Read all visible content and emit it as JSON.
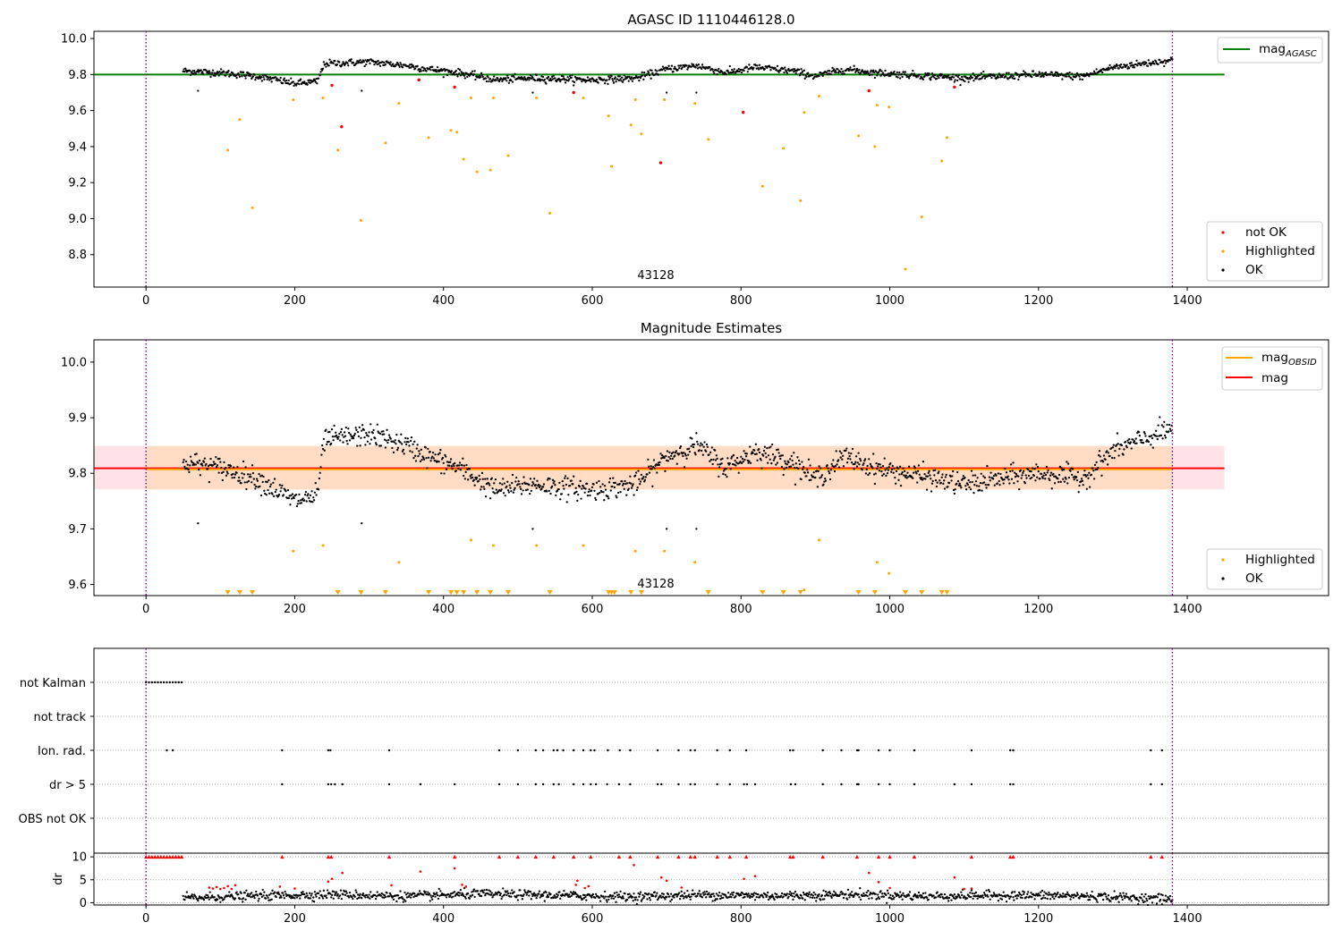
{
  "figure": {
    "title": "AGASC ID 1110446128.0",
    "colors": {
      "ok": "#000000",
      "not_ok": "#ff0000",
      "highlighted": "#ffa500",
      "mag_agasc": "#008000",
      "mag": "#ff0000",
      "mag_obsid": "#ffa500",
      "obs_boundary": "#800080",
      "band_mag": "#ffc0cb",
      "band_obsid": "#ffdab9"
    }
  },
  "chart_data": [
    {
      "type": "scatter",
      "title": "",
      "xlabel": "",
      "ylabel": "",
      "xlim": [
        -70,
        1590
      ],
      "ylim": [
        8.62,
        10.04
      ],
      "xticks": [
        0,
        200,
        400,
        600,
        800,
        1000,
        1200,
        1400
      ],
      "yticks": [
        8.8,
        9.0,
        9.2,
        9.4,
        9.6,
        9.8,
        10.0
      ],
      "ytick_labels": [
        "8.8",
        "9.0",
        "9.2",
        "9.4",
        "9.6",
        "9.8",
        "10.0"
      ],
      "grid": false,
      "obs_boundaries": [
        0,
        1380
      ],
      "obsid_label": {
        "text": "43128",
        "x": 690
      },
      "reference_lines": [
        {
          "name": "magAGASC",
          "legend_main": "mag",
          "legend_sub": "AGASC",
          "y": 9.8,
          "x_range": [
            -70,
            1450
          ]
        }
      ],
      "ok_trace": {
        "x_range": [
          50,
          1380
        ],
        "anchors": [
          [
            50,
            9.82
          ],
          [
            100,
            9.81
          ],
          [
            150,
            9.79
          ],
          [
            200,
            9.75
          ],
          [
            230,
            9.76
          ],
          [
            240,
            9.86
          ],
          [
            300,
            9.87
          ],
          [
            350,
            9.85
          ],
          [
            380,
            9.83
          ],
          [
            420,
            9.81
          ],
          [
            470,
            9.77
          ],
          [
            520,
            9.78
          ],
          [
            600,
            9.77
          ],
          [
            660,
            9.78
          ],
          [
            700,
            9.83
          ],
          [
            740,
            9.85
          ],
          [
            780,
            9.81
          ],
          [
            820,
            9.84
          ],
          [
            870,
            9.82
          ],
          [
            900,
            9.79
          ],
          [
            940,
            9.83
          ],
          [
            980,
            9.81
          ],
          [
            1020,
            9.8
          ],
          [
            1100,
            9.78
          ],
          [
            1200,
            9.8
          ],
          [
            1260,
            9.79
          ],
          [
            1300,
            9.84
          ],
          [
            1380,
            9.88
          ]
        ],
        "spread": 0.018,
        "step": 1,
        "sparse_outliers": [
          [
            70,
            9.71
          ],
          [
            290,
            9.71
          ],
          [
            520,
            9.7
          ],
          [
            700,
            9.7
          ],
          [
            740,
            9.7
          ]
        ]
      },
      "highlighted": [
        [
          110,
          9.38
        ],
        [
          126,
          9.55
        ],
        [
          143,
          9.06
        ],
        [
          198,
          9.66
        ],
        [
          238,
          9.67
        ],
        [
          258,
          9.38
        ],
        [
          289,
          8.99
        ],
        [
          322,
          9.42
        ],
        [
          340,
          9.64
        ],
        [
          380,
          9.45
        ],
        [
          410,
          9.49
        ],
        [
          418,
          9.48
        ],
        [
          427,
          9.33
        ],
        [
          437,
          9.67
        ],
        [
          445,
          9.26
        ],
        [
          463,
          9.27
        ],
        [
          467,
          9.67
        ],
        [
          487,
          9.35
        ],
        [
          525,
          9.67
        ],
        [
          543,
          9.03
        ],
        [
          588,
          9.67
        ],
        [
          622,
          9.57
        ],
        [
          626,
          9.29
        ],
        [
          652,
          9.52
        ],
        [
          658,
          9.66
        ],
        [
          666,
          9.47
        ],
        [
          697,
          9.66
        ],
        [
          738,
          9.64
        ],
        [
          756,
          9.44
        ],
        [
          829,
          9.18
        ],
        [
          857,
          9.39
        ],
        [
          880,
          9.1
        ],
        [
          885,
          9.59
        ],
        [
          905,
          9.68
        ],
        [
          958,
          9.46
        ],
        [
          980,
          9.4
        ],
        [
          983,
          9.63
        ],
        [
          999,
          9.62
        ],
        [
          1021,
          8.72
        ],
        [
          1043,
          9.01
        ],
        [
          1070,
          9.32
        ],
        [
          1077,
          9.45
        ]
      ],
      "not_ok": [
        [
          250,
          9.74
        ],
        [
          263,
          9.51
        ],
        [
          367,
          9.77
        ],
        [
          415,
          9.73
        ],
        [
          575,
          9.7
        ],
        [
          692,
          9.31
        ],
        [
          803,
          9.59
        ],
        [
          972,
          9.71
        ],
        [
          1087,
          9.73
        ]
      ],
      "legend": [
        {
          "label": "not OK",
          "color": "#ff0000"
        },
        {
          "label": "Highlighted",
          "color": "#ffa500"
        },
        {
          "label": "OK",
          "color": "#000000"
        }
      ]
    },
    {
      "type": "scatter",
      "title": "Magnitude Estimates",
      "xlabel": "",
      "ylabel": "",
      "xlim": [
        -70,
        1590
      ],
      "ylim": [
        9.58,
        10.04
      ],
      "xticks": [
        0,
        200,
        400,
        600,
        800,
        1000,
        1200,
        1400
      ],
      "yticks": [
        9.6,
        9.7,
        9.8,
        9.9,
        10.0
      ],
      "ytick_labels": [
        "9.6",
        "9.7",
        "9.8",
        "9.9",
        "10.0"
      ],
      "grid": false,
      "obs_boundaries": [
        0,
        1380
      ],
      "obsid_label": {
        "text": "43128",
        "x": 690
      },
      "bands": [
        {
          "name": "mag",
          "y_range": [
            9.771,
            9.849
          ],
          "x_range": [
            -70,
            1450
          ],
          "color": "#ffc0cb"
        },
        {
          "name": "magOBSID",
          "y_range": [
            9.771,
            9.849
          ],
          "x_range": [
            0,
            1380
          ],
          "color": "#ffdab9"
        }
      ],
      "reference_lines": [
        {
          "name": "mag",
          "legend_main": "mag",
          "legend_sub": "",
          "y": 9.809,
          "x_range": [
            -70,
            1450
          ],
          "color": "#ff0000"
        },
        {
          "name": "magOBSID",
          "legend_main": "mag",
          "legend_sub": "OBSID",
          "y": 9.807,
          "x_range": [
            0,
            1380
          ],
          "color": "#ffa500"
        }
      ],
      "ok_trace": {
        "x_range": [
          50,
          1380
        ],
        "anchors": [
          [
            50,
            9.82
          ],
          [
            100,
            9.81
          ],
          [
            150,
            9.79
          ],
          [
            200,
            9.75
          ],
          [
            230,
            9.76
          ],
          [
            240,
            9.86
          ],
          [
            300,
            9.87
          ],
          [
            350,
            9.85
          ],
          [
            380,
            9.83
          ],
          [
            420,
            9.81
          ],
          [
            470,
            9.77
          ],
          [
            520,
            9.78
          ],
          [
            600,
            9.77
          ],
          [
            660,
            9.78
          ],
          [
            700,
            9.83
          ],
          [
            740,
            9.85
          ],
          [
            780,
            9.81
          ],
          [
            820,
            9.84
          ],
          [
            870,
            9.82
          ],
          [
            900,
            9.79
          ],
          [
            940,
            9.83
          ],
          [
            980,
            9.81
          ],
          [
            1020,
            9.8
          ],
          [
            1100,
            9.78
          ],
          [
            1200,
            9.8
          ],
          [
            1260,
            9.79
          ],
          [
            1300,
            9.84
          ],
          [
            1380,
            9.88
          ]
        ],
        "spread": 0.018,
        "step": 1,
        "sparse_outliers": [
          [
            70,
            9.71
          ],
          [
            290,
            9.71
          ],
          [
            520,
            9.7
          ],
          [
            700,
            9.7
          ],
          [
            740,
            9.7
          ]
        ]
      },
      "highlighted": [
        [
          198,
          9.66
        ],
        [
          238,
          9.67
        ],
        [
          340,
          9.64
        ],
        [
          437,
          9.68
        ],
        [
          467,
          9.67
        ],
        [
          525,
          9.67
        ],
        [
          588,
          9.67
        ],
        [
          658,
          9.66
        ],
        [
          697,
          9.66
        ],
        [
          738,
          9.64
        ],
        [
          905,
          9.68
        ],
        [
          983,
          9.64
        ],
        [
          999,
          9.62
        ],
        [
          885,
          9.59
        ]
      ],
      "highlighted_below_range": [
        110,
        126,
        143,
        258,
        289,
        322,
        380,
        410,
        418,
        427,
        445,
        463,
        487,
        543,
        622,
        626,
        630,
        652,
        666,
        756,
        829,
        857,
        880,
        958,
        980,
        1021,
        1043,
        1070,
        1077
      ],
      "legend": [
        {
          "label": "Highlighted",
          "color": "#ffa500"
        },
        {
          "label": "OK",
          "color": "#000000"
        }
      ]
    },
    {
      "type": "scatter",
      "title": "",
      "xlabel": "",
      "ylabel": "",
      "xlim": [
        -70,
        1590
      ],
      "xticks": [
        0,
        200,
        400,
        600,
        800,
        1000,
        1200,
        1400
      ],
      "grid": true,
      "obs_boundaries": [
        0,
        1380
      ],
      "flag_rows": [
        {
          "label": "not Kalman",
          "x": [
            0,
            4,
            8,
            12,
            16,
            20,
            24,
            28,
            32,
            36,
            40,
            44,
            48
          ]
        },
        {
          "label": "not track",
          "x": []
        },
        {
          "label": "Ion. rad.",
          "x": [
            28,
            36,
            183,
            245,
            248,
            327,
            475,
            500,
            524,
            534,
            548,
            553,
            561,
            575,
            588,
            598,
            603,
            621,
            637,
            651,
            688,
            716,
            732,
            738,
            768,
            785,
            807,
            866,
            870,
            910,
            935,
            956,
            958,
            985,
            1000,
            1033,
            1110,
            1162,
            1166,
            1351,
            1366
          ]
        },
        {
          "label": "dr > 5",
          "x": [
            183,
            245,
            249,
            254,
            264,
            327,
            369,
            415,
            475,
            500,
            524,
            534,
            548,
            555,
            575,
            588,
            598,
            605,
            620,
            636,
            651,
            688,
            693,
            716,
            732,
            738,
            768,
            785,
            804,
            808,
            819,
            867,
            873,
            910,
            935,
            956,
            958,
            985,
            1000,
            1033,
            1087,
            1110,
            1162,
            1166,
            1351,
            1366
          ]
        },
        {
          "label": "OBS not OK",
          "x": []
        }
      ]
    },
    {
      "type": "scatter",
      "title": "",
      "xlabel": "",
      "ylabel": "dr",
      "xlim": [
        -70,
        1590
      ],
      "ylim": [
        -0.5,
        10.8
      ],
      "xticks": [
        0,
        200,
        400,
        600,
        800,
        1000,
        1200,
        1400
      ],
      "xtick_labels": [
        "0",
        "200",
        "400",
        "600",
        "800",
        "1000",
        "1200",
        "1400"
      ],
      "yticks": [
        0,
        5,
        10
      ],
      "ytick_labels": [
        "0",
        "5",
        "10"
      ],
      "grid": true,
      "obs_boundaries": [
        0,
        1380
      ],
      "capped_markers_at_10": [
        0,
        4,
        8,
        12,
        16,
        20,
        24,
        28,
        32,
        36,
        40,
        44,
        48,
        183,
        245,
        249,
        327,
        415,
        475,
        500,
        524,
        548,
        575,
        598,
        636,
        651,
        688,
        716,
        732,
        738,
        768,
        785,
        807,
        866,
        870,
        910,
        956,
        985,
        1000,
        1033,
        1110,
        1162,
        1166,
        1351,
        1366
      ],
      "red_points": [
        [
          85,
          3.3
        ],
        [
          90,
          3.1
        ],
        [
          95,
          3.4
        ],
        [
          100,
          3.0
        ],
        [
          105,
          3.2
        ],
        [
          110,
          3.6
        ],
        [
          115,
          3.0
        ],
        [
          120,
          3.8
        ],
        [
          180,
          3.5
        ],
        [
          200,
          3.1
        ],
        [
          245,
          4.6
        ],
        [
          250,
          5.2
        ],
        [
          264,
          6.5
        ],
        [
          330,
          3.8
        ],
        [
          369,
          6.8
        ],
        [
          415,
          7.5
        ],
        [
          425,
          3.9
        ],
        [
          430,
          3.5
        ],
        [
          578,
          3.9
        ],
        [
          580,
          4.8
        ],
        [
          590,
          3.2
        ],
        [
          595,
          3.6
        ],
        [
          656,
          8.2
        ],
        [
          693,
          5.5
        ],
        [
          700,
          4.8
        ],
        [
          720,
          3.3
        ],
        [
          804,
          5.2
        ],
        [
          819,
          5.8
        ],
        [
          972,
          6.5
        ],
        [
          985,
          4.5
        ],
        [
          1000,
          3.2
        ],
        [
          1087,
          5.5
        ],
        [
          1100,
          3.0
        ],
        [
          1110,
          3.1
        ]
      ],
      "ok_trace": {
        "x_range": [
          50,
          1380
        ],
        "anchors": [
          [
            50,
            1.0
          ],
          [
            150,
            1.5
          ],
          [
            250,
            1.8
          ],
          [
            350,
            1.4
          ],
          [
            450,
            1.9
          ],
          [
            550,
            1.6
          ],
          [
            650,
            1.3
          ],
          [
            750,
            1.7
          ],
          [
            850,
            1.5
          ],
          [
            950,
            1.8
          ],
          [
            1050,
            1.4
          ],
          [
            1150,
            1.6
          ],
          [
            1250,
            1.5
          ],
          [
            1380,
            0.8
          ]
        ],
        "spread": 0.9,
        "step": 1
      }
    }
  ]
}
